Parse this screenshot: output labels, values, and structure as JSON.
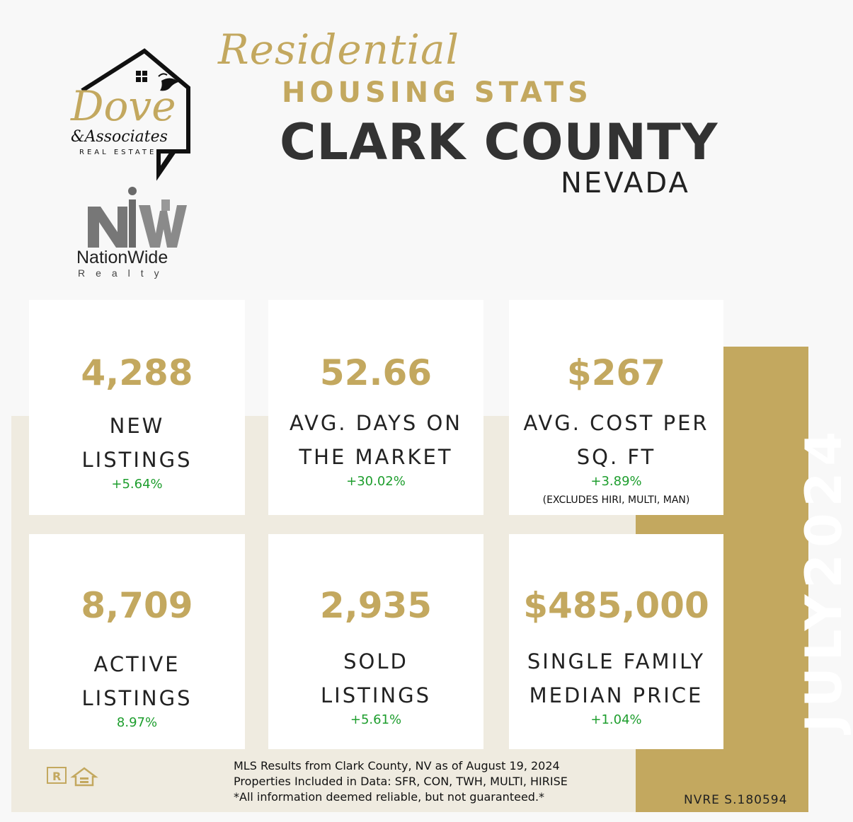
{
  "header": {
    "script_title": "Residential",
    "subtitle": "HOUSING STATS",
    "county": "CLARK COUNTY",
    "state": "NEVADA"
  },
  "logos": {
    "dove_word": "Dove",
    "dove_assoc": "&Associates",
    "dove_re": "REAL ESTATE",
    "nw_name": "NationWide",
    "nw_sub": "Realty"
  },
  "month": "JULY2024",
  "stats": [
    {
      "value": "4,288",
      "label1": "NEW",
      "label2": "LISTINGS",
      "change": "+5.64%"
    },
    {
      "value": "52.66",
      "label1": "AVG. DAYS ON",
      "label2": "THE MARKET",
      "change": "+30.02%"
    },
    {
      "value": "$267",
      "label1": "AVG. COST PER",
      "label2": "SQ. FT",
      "change": "+3.89%",
      "note": "(EXCLUDES HIRI, MULTI, MAN)"
    },
    {
      "value": "8,709",
      "label1": "ACTIVE",
      "label2": "LISTINGS",
      "change": "8.97%"
    },
    {
      "value": "2,935",
      "label1": "SOLD",
      "label2": "LISTINGS",
      "change": "+5.61%"
    },
    {
      "value": "$485,000",
      "label1": "SINGLE FAMILY",
      "label2": "MEDIAN PRICE",
      "change": "+1.04%"
    }
  ],
  "footer": {
    "line1": "MLS Results from Clark County, NV as of August 19, 2024",
    "line2": "Properties Included in Data: SFR, CON, TWH, MULTI, HIRISE",
    "line3": "*All information deemed reliable, but not guaranteed.*",
    "license": "NVRE S.180594",
    "realtor_icon": "realtor-logo-icon",
    "eho_icon": "equal-housing-icon"
  },
  "colors": {
    "gold": "#c3a85f",
    "dark": "#333333",
    "green": "#1e9e2e",
    "band": "#efebe0"
  }
}
